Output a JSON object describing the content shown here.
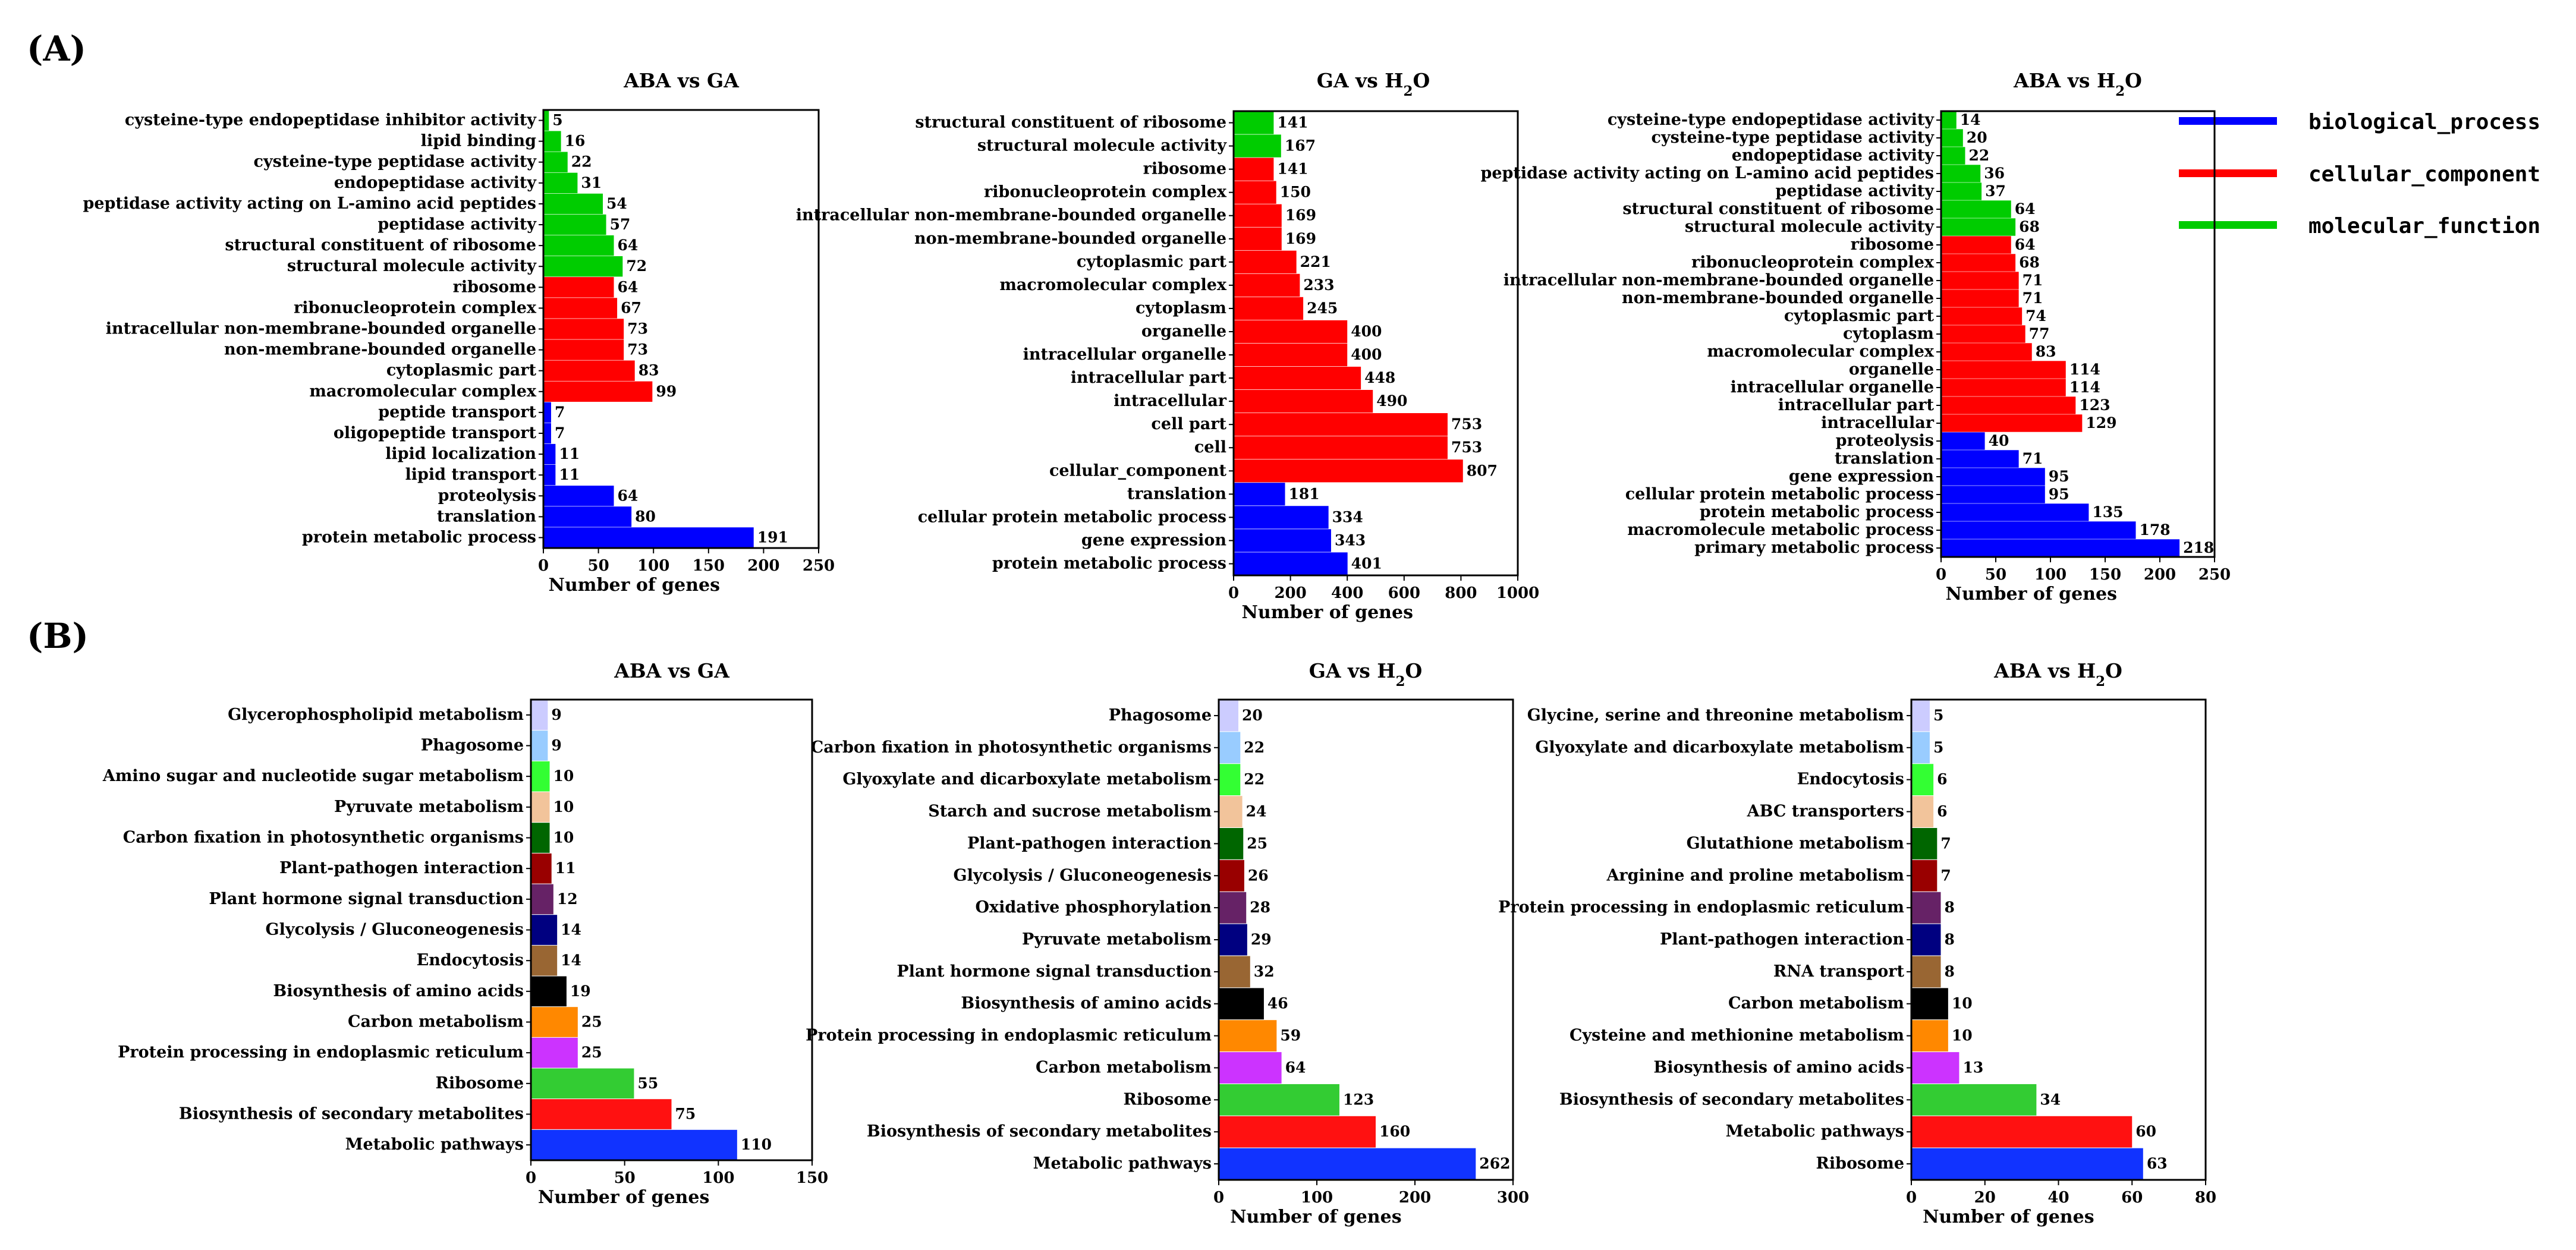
{
  "panels": [
    {
      "label": "(A)"
    },
    {
      "label": "(B)"
    }
  ],
  "legend": [
    {
      "label": "biological_process",
      "color": "#0000ff"
    },
    {
      "label": "cellular_component",
      "color": "#ff0000"
    },
    {
      "label": "molecular_function",
      "color": "#00cc00"
    }
  ],
  "chart_data": [
    {
      "type": "bar",
      "orientation": "horizontal",
      "panel": "(A)",
      "title": "ABA vs GA",
      "xlabel": "Number of genes",
      "xlim": [
        0,
        250
      ],
      "xticks": [
        0,
        50,
        100,
        150,
        200,
        250
      ],
      "categories": [
        "cysteine-type endopeptidase inhibitor activity",
        "lipid binding",
        "cysteine-type peptidase activity",
        "endopeptidase activity",
        "peptidase activity acting on L-amino acid peptides",
        "peptidase activity",
        "structural constituent of ribosome",
        "structural molecule activity",
        "ribosome",
        "ribonucleoprotein complex",
        "intracellular non-membrane-bounded organelle",
        "non-membrane-bounded organelle",
        "cytoplasmic part",
        "macromolecular complex",
        "peptide transport",
        "oligopeptide transport",
        "lipid localization",
        "lipid transport",
        "proteolysis",
        "translation",
        "protein metabolic process"
      ],
      "values": [
        5,
        16,
        22,
        31,
        54,
        57,
        64,
        72,
        64,
        67,
        73,
        73,
        83,
        99,
        7,
        7,
        11,
        11,
        64,
        80,
        191
      ],
      "colors": [
        "#00cc00",
        "#00cc00",
        "#00cc00",
        "#00cc00",
        "#00cc00",
        "#00cc00",
        "#00cc00",
        "#00cc00",
        "#ff0000",
        "#ff0000",
        "#ff0000",
        "#ff0000",
        "#ff0000",
        "#ff0000",
        "#0000ff",
        "#0000ff",
        "#0000ff",
        "#0000ff",
        "#0000ff",
        "#0000ff",
        "#0000ff"
      ]
    },
    {
      "type": "bar",
      "orientation": "horizontal",
      "panel": "(A)",
      "title": "GA vs H",
      "title_sub": "2",
      "title_suffix": "O",
      "xlabel": "Number of genes",
      "xlim": [
        0,
        1000
      ],
      "xticks": [
        0,
        200,
        400,
        600,
        800,
        1000
      ],
      "categories": [
        "structural constituent of ribosome",
        "structural molecule activity",
        "ribosome",
        "ribonucleoprotein complex",
        "intracellular non-membrane-bounded organelle",
        "non-membrane-bounded organelle",
        "cytoplasmic part",
        "macromolecular complex",
        "cytoplasm",
        "organelle",
        "intracellular organelle",
        "intracellular part",
        "intracellular",
        "cell part",
        "cell",
        "cellular_component",
        "translation",
        "cellular protein metabolic process",
        "gene expression",
        "protein metabolic process"
      ],
      "values": [
        141,
        167,
        141,
        150,
        169,
        169,
        221,
        233,
        245,
        400,
        400,
        448,
        490,
        753,
        753,
        807,
        181,
        334,
        343,
        401
      ],
      "colors": [
        "#00cc00",
        "#00cc00",
        "#ff0000",
        "#ff0000",
        "#ff0000",
        "#ff0000",
        "#ff0000",
        "#ff0000",
        "#ff0000",
        "#ff0000",
        "#ff0000",
        "#ff0000",
        "#ff0000",
        "#ff0000",
        "#ff0000",
        "#ff0000",
        "#0000ff",
        "#0000ff",
        "#0000ff",
        "#0000ff"
      ]
    },
    {
      "type": "bar",
      "orientation": "horizontal",
      "panel": "(A)",
      "title": "ABA vs H",
      "title_sub": "2",
      "title_suffix": "O",
      "xlabel": "Number of genes",
      "xlim": [
        0,
        250
      ],
      "xticks": [
        0,
        50,
        100,
        150,
        200,
        250
      ],
      "categories": [
        "cysteine-type endopeptidase activity",
        "cysteine-type peptidase activity",
        "endopeptidase activity",
        "peptidase activity acting on L-amino acid peptides",
        "peptidase activity",
        "structural constituent of ribosome",
        "structural molecule activity",
        "ribosome",
        "ribonucleoprotein complex",
        "intracellular non-membrane-bounded organelle",
        "non-membrane-bounded organelle",
        "cytoplasmic part",
        "cytoplasm",
        "macromolecular complex",
        "organelle",
        "intracellular organelle",
        "intracellular part",
        "intracellular",
        "proteolysis",
        "translation",
        "gene expression",
        "cellular protein metabolic process",
        "protein metabolic process",
        "macromolecule metabolic process",
        "primary metabolic process"
      ],
      "values": [
        14,
        20,
        22,
        36,
        37,
        64,
        68,
        64,
        68,
        71,
        71,
        74,
        77,
        83,
        114,
        114,
        123,
        129,
        40,
        71,
        95,
        95,
        135,
        178,
        218
      ],
      "colors": [
        "#00cc00",
        "#00cc00",
        "#00cc00",
        "#00cc00",
        "#00cc00",
        "#00cc00",
        "#00cc00",
        "#ff0000",
        "#ff0000",
        "#ff0000",
        "#ff0000",
        "#ff0000",
        "#ff0000",
        "#ff0000",
        "#ff0000",
        "#ff0000",
        "#ff0000",
        "#ff0000",
        "#0000ff",
        "#0000ff",
        "#0000ff",
        "#0000ff",
        "#0000ff",
        "#0000ff",
        "#0000ff"
      ]
    },
    {
      "type": "bar",
      "orientation": "horizontal",
      "panel": "(B)",
      "title": "ABA vs GA",
      "xlabel": "Number of genes",
      "xlim": [
        0,
        150
      ],
      "xticks": [
        0,
        50,
        100,
        150
      ],
      "categories": [
        "Glycerophospholipid metabolism",
        "Phagosome",
        "Amino sugar and nucleotide sugar metabolism",
        "Pyruvate metabolism",
        "Carbon fixation in photosynthetic organisms",
        "Plant-pathogen interaction",
        "Plant hormone signal transduction",
        "Glycolysis / Gluconeogenesis",
        "Endocytosis",
        "Biosynthesis of amino acids",
        "Carbon metabolism",
        "Protein processing in endoplasmic reticulum",
        "Ribosome",
        "Biosynthesis of secondary metabolites",
        "Metabolic pathways"
      ],
      "values": [
        9,
        9,
        10,
        10,
        10,
        11,
        12,
        14,
        14,
        19,
        25,
        25,
        55,
        75,
        110
      ],
      "colors": [
        "#ccccff",
        "#99ccff",
        "#33ff33",
        "#f2c49b",
        "#006600",
        "#990000",
        "#662266",
        "#000080",
        "#996633",
        "#000000",
        "#ff8800",
        "#cc33ff",
        "#33cc33",
        "#ff1111",
        "#1133ff"
      ]
    },
    {
      "type": "bar",
      "orientation": "horizontal",
      "panel": "(B)",
      "title": "GA vs H",
      "title_sub": "2",
      "title_suffix": "O",
      "xlabel": "Number of genes",
      "xlim": [
        0,
        300
      ],
      "xticks": [
        0,
        100,
        200,
        300
      ],
      "categories": [
        "Phagosome",
        "Carbon fixation in photosynthetic organisms",
        "Glyoxylate and dicarboxylate metabolism",
        "Starch and sucrose metabolism",
        "Plant-pathogen interaction",
        "Glycolysis / Gluconeogenesis",
        "Oxidative phosphorylation",
        "Pyruvate metabolism",
        "Plant hormone signal transduction",
        "Biosynthesis of amino acids",
        "Protein processing in endoplasmic reticulum",
        "Carbon metabolism",
        "Ribosome",
        "Biosynthesis of secondary metabolites",
        "Metabolic pathways"
      ],
      "values": [
        20,
        22,
        22,
        24,
        25,
        26,
        28,
        29,
        32,
        46,
        59,
        64,
        123,
        160,
        262
      ],
      "colors": [
        "#ccccff",
        "#99ccff",
        "#33ff33",
        "#f2c49b",
        "#006600",
        "#990000",
        "#662266",
        "#000080",
        "#996633",
        "#000000",
        "#ff8800",
        "#cc33ff",
        "#33cc33",
        "#ff1111",
        "#1133ff"
      ]
    },
    {
      "type": "bar",
      "orientation": "horizontal",
      "panel": "(B)",
      "title": "ABA vs H",
      "title_sub": "2",
      "title_suffix": "O",
      "xlabel": "Number of genes",
      "xlim": [
        0,
        80
      ],
      "xticks": [
        0,
        20,
        40,
        60,
        80
      ],
      "categories": [
        "Glycine, serine and threonine metabolism",
        "Glyoxylate and dicarboxylate metabolism",
        "Endocytosis",
        "ABC transporters",
        "Glutathione metabolism",
        "Arginine and proline metabolism",
        "Protein processing in endoplasmic reticulum",
        "Plant-pathogen interaction",
        "RNA transport",
        "Carbon metabolism",
        "Cysteine and methionine metabolism",
        "Biosynthesis of amino acids",
        "Biosynthesis of secondary metabolites",
        "Metabolic pathways",
        "Ribosome"
      ],
      "values": [
        5,
        5,
        6,
        6,
        7,
        7,
        8,
        8,
        8,
        10,
        10,
        13,
        34,
        60,
        63
      ],
      "colors": [
        "#ccccff",
        "#99ccff",
        "#33ff33",
        "#f2c49b",
        "#006600",
        "#990000",
        "#662266",
        "#000080",
        "#996633",
        "#000000",
        "#ff8800",
        "#cc33ff",
        "#33cc33",
        "#ff1111",
        "#1133ff"
      ]
    }
  ]
}
